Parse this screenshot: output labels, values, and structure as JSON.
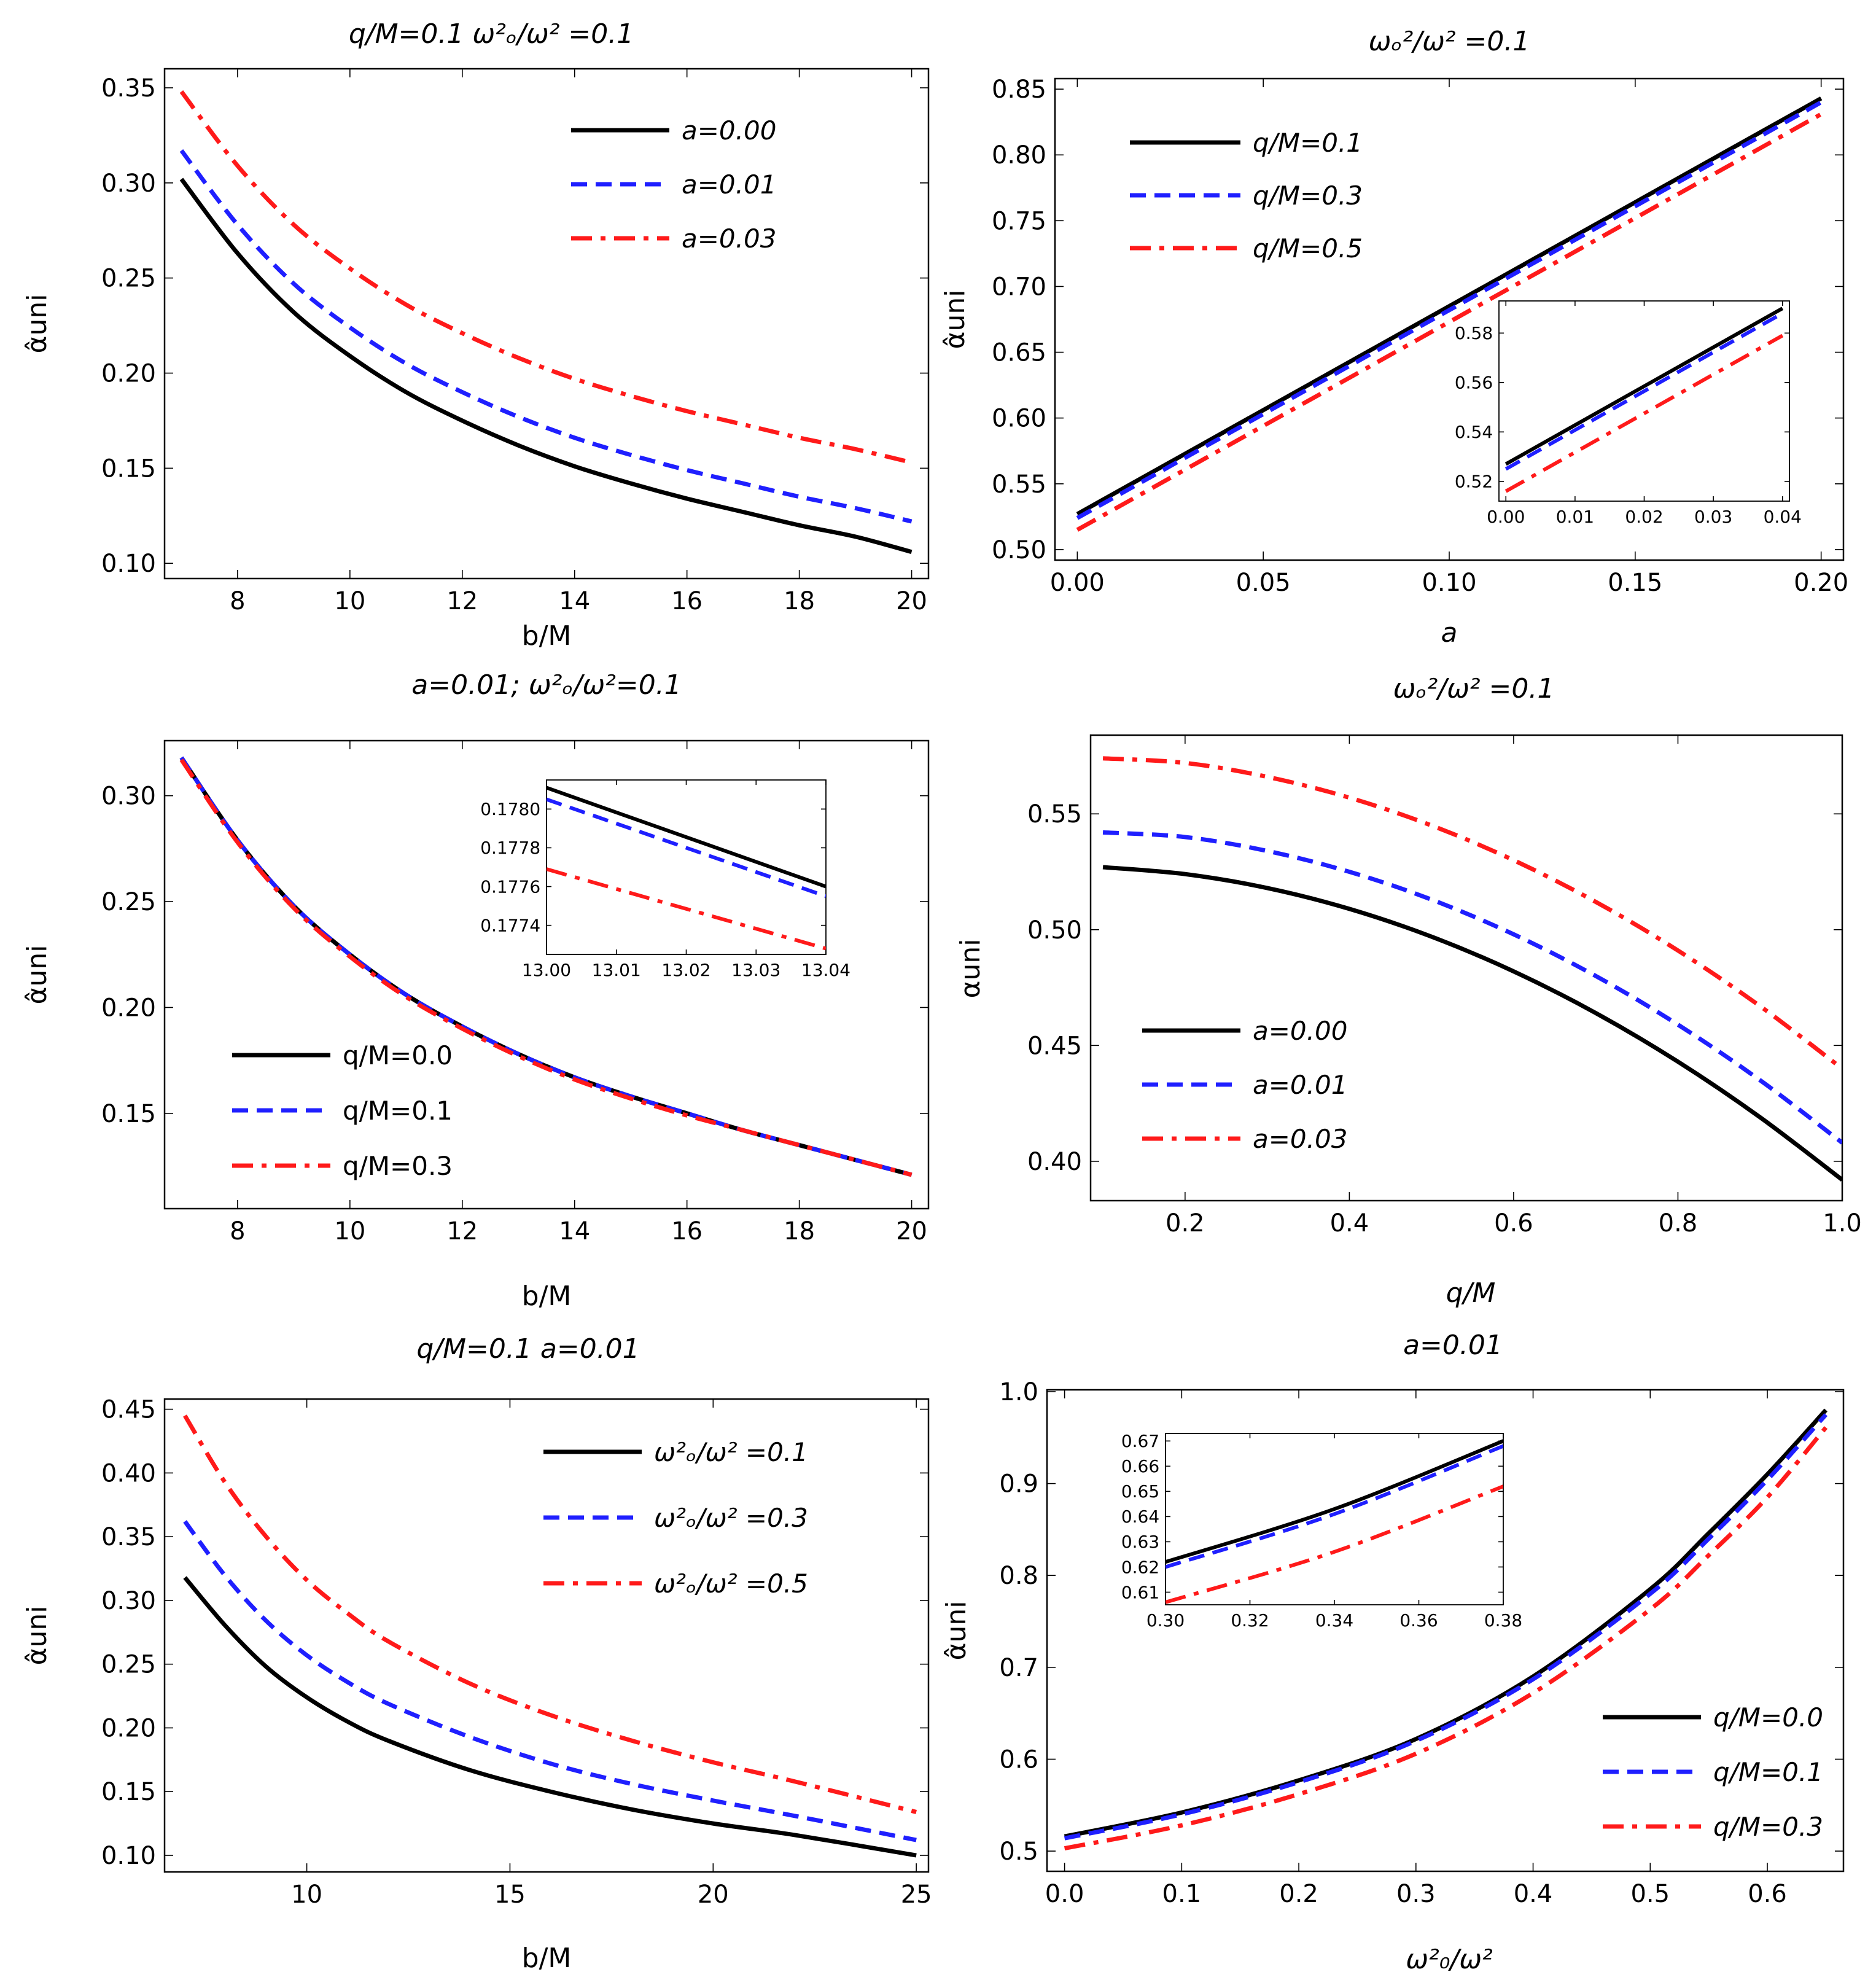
{
  "colors": {
    "black": "#000000",
    "blue": "#1f1fff",
    "red": "#ff1a1a",
    "frame": "#000000",
    "background": "#ffffff"
  },
  "chart_data": [
    {
      "id": "p1",
      "type": "line",
      "title": "q/M=0.1 ω²ₒ/ω² =0.1",
      "xlabel": "b/M",
      "ylabel": "α̂uni",
      "xlim": [
        6.7,
        20.3
      ],
      "ylim": [
        0.092,
        0.36
      ],
      "xticks": [
        8,
        10,
        12,
        14,
        16,
        18,
        20
      ],
      "yticks": [
        0.1,
        0.15,
        0.2,
        0.25,
        0.3,
        0.35
      ],
      "x_tick_labels": [
        "8",
        "10",
        "12",
        "14",
        "16",
        "18",
        "20"
      ],
      "y_tick_labels": [
        "0.10",
        "0.15",
        "0.20",
        "0.25",
        "0.30",
        "0.35"
      ],
      "legend_position": "top-right",
      "series": [
        {
          "name": "a=0.00",
          "style": "solid",
          "color": "#000000",
          "x": [
            7,
            8,
            9,
            10,
            11,
            12,
            13,
            14,
            15,
            16,
            17,
            18,
            19,
            20
          ],
          "y": [
            0.302,
            0.263,
            0.232,
            0.209,
            0.19,
            0.175,
            0.162,
            0.151,
            0.142,
            0.134,
            0.127,
            0.12,
            0.114,
            0.106
          ]
        },
        {
          "name": "a=0.01",
          "style": "dashed",
          "color": "#1f1fff",
          "x": [
            7,
            8,
            9,
            10,
            11,
            12,
            13,
            14,
            15,
            16,
            17,
            18,
            19,
            20
          ],
          "y": [
            0.317,
            0.278,
            0.247,
            0.224,
            0.205,
            0.19,
            0.177,
            0.166,
            0.157,
            0.149,
            0.142,
            0.135,
            0.129,
            0.122
          ]
        },
        {
          "name": "a=0.03",
          "style": "dashdot",
          "color": "#ff1a1a",
          "x": [
            7,
            8,
            9,
            10,
            11,
            12,
            13,
            14,
            15,
            16,
            17,
            18,
            19,
            20
          ],
          "y": [
            0.348,
            0.309,
            0.278,
            0.255,
            0.236,
            0.221,
            0.208,
            0.197,
            0.188,
            0.18,
            0.173,
            0.166,
            0.16,
            0.153
          ]
        }
      ]
    },
    {
      "id": "p2",
      "type": "line",
      "title": "ωₒ²/ω² =0.1",
      "xlabel": "a",
      "ylabel": "α̂uni",
      "xlim": [
        -0.006,
        0.206
      ],
      "ylim": [
        0.492,
        0.858
      ],
      "xticks": [
        0.0,
        0.05,
        0.1,
        0.15,
        0.2
      ],
      "yticks": [
        0.5,
        0.55,
        0.6,
        0.65,
        0.7,
        0.75,
        0.8,
        0.85
      ],
      "x_tick_labels": [
        "0.00",
        "0.05",
        "0.10",
        "0.15",
        "0.20"
      ],
      "y_tick_labels": [
        "0.50",
        "0.55",
        "0.60",
        "0.65",
        "0.70",
        "0.75",
        "0.80",
        "0.85"
      ],
      "legend_position": "top-left",
      "series": [
        {
          "name": "q/M=0.1",
          "style": "solid",
          "color": "#000000",
          "x": [
            0.0,
            0.2
          ],
          "y": [
            0.527,
            0.843
          ]
        },
        {
          "name": "q/M=0.3",
          "style": "dashed",
          "color": "#1f1fff",
          "x": [
            0.0,
            0.2
          ],
          "y": [
            0.524,
            0.84
          ]
        },
        {
          "name": "q/M=0.5",
          "style": "dashdot",
          "color": "#ff1a1a",
          "x": [
            0.0,
            0.2
          ],
          "y": [
            0.515,
            0.831
          ]
        }
      ],
      "inset": {
        "xlim": [
          -0.001,
          0.041
        ],
        "ylim": [
          0.512,
          0.593
        ],
        "xticks": [
          0.0,
          0.01,
          0.02,
          0.03,
          0.04
        ],
        "yticks": [
          0.52,
          0.54,
          0.56,
          0.58
        ],
        "x_tick_labels": [
          "0.00",
          "0.01",
          "0.02",
          "0.03",
          "0.04"
        ],
        "y_tick_labels": [
          "0.52",
          "0.54",
          "0.56",
          "0.58"
        ],
        "series": [
          {
            "name": "q/M=0.1",
            "x": [
              0.0,
              0.04
            ],
            "y": [
              0.527,
              0.59
            ]
          },
          {
            "name": "q/M=0.3",
            "x": [
              0.0,
              0.04
            ],
            "y": [
              0.525,
              0.588
            ]
          },
          {
            "name": "q/M=0.5",
            "x": [
              0.0,
              0.04
            ],
            "y": [
              0.516,
              0.579
            ]
          }
        ]
      }
    },
    {
      "id": "p3",
      "type": "line",
      "title": "a=0.01;   ω²ₒ/ω²=0.1",
      "xlabel": "b/M",
      "ylabel": "α̂uni",
      "xlim": [
        6.7,
        20.3
      ],
      "ylim": [
        0.105,
        0.326
      ],
      "xticks": [
        8,
        10,
        12,
        14,
        16,
        18,
        20
      ],
      "yticks": [
        0.15,
        0.2,
        0.25,
        0.3
      ],
      "x_tick_labels": [
        "8",
        "10",
        "12",
        "14",
        "16",
        "18",
        "20"
      ],
      "y_tick_labels": [
        "0.15",
        "0.20",
        "0.25",
        "0.30"
      ],
      "legend_position": "bottom-left",
      "series": [
        {
          "name": "q/M=0.0",
          "style": "solid",
          "color": "#000000",
          "x": [
            7,
            8,
            9,
            10,
            11,
            12,
            13,
            14,
            15,
            16,
            17,
            18,
            19,
            20
          ],
          "y": [
            0.318,
            0.279,
            0.248,
            0.225,
            0.206,
            0.191,
            0.178,
            0.167,
            0.158,
            0.15,
            0.142,
            0.135,
            0.128,
            0.121
          ]
        },
        {
          "name": "q/M=0.1",
          "style": "dashed",
          "color": "#1f1fff",
          "x": [
            7,
            8,
            9,
            10,
            11,
            12,
            13,
            14,
            15,
            16,
            17,
            18,
            19,
            20
          ],
          "y": [
            0.318,
            0.279,
            0.248,
            0.225,
            0.206,
            0.191,
            0.178,
            0.167,
            0.158,
            0.15,
            0.142,
            0.135,
            0.128,
            0.121
          ]
        },
        {
          "name": "q/M=0.3",
          "style": "dashdot",
          "color": "#ff1a1a",
          "x": [
            7,
            8,
            9,
            10,
            11,
            12,
            13,
            14,
            15,
            16,
            17,
            18,
            19,
            20
          ],
          "y": [
            0.317,
            0.278,
            0.247,
            0.224,
            0.205,
            0.19,
            0.177,
            0.166,
            0.157,
            0.149,
            0.142,
            0.135,
            0.128,
            0.121
          ]
        }
      ],
      "inset": {
        "xlim": [
          13.0,
          13.04
        ],
        "ylim": [
          0.17725,
          0.17815
        ],
        "xticks": [
          13.0,
          13.01,
          13.02,
          13.03,
          13.04
        ],
        "yticks": [
          0.1774,
          0.1776,
          0.1778,
          0.178
        ],
        "x_tick_labels": [
          "13.00",
          "13.01",
          "13.02",
          "13.03",
          "13.04"
        ],
        "y_tick_labels": [
          "0.1774",
          "0.1776",
          "0.1778",
          "0.1780"
        ],
        "series": [
          {
            "name": "q/M=0.0",
            "x": [
              13.0,
              13.04
            ],
            "y": [
              0.17811,
              0.1776
            ]
          },
          {
            "name": "q/M=0.1",
            "x": [
              13.0,
              13.04
            ],
            "y": [
              0.17805,
              0.17755
            ]
          },
          {
            "name": "q/M=0.3",
            "x": [
              13.0,
              13.04
            ],
            "y": [
              0.17769,
              0.17728
            ]
          }
        ]
      }
    },
    {
      "id": "p4",
      "type": "line",
      "title": "ωₒ²/ω² =0.1",
      "xlabel": "q/M",
      "ylabel": "αuni",
      "xlim": [
        0.085,
        1.0
      ],
      "ylim": [
        0.383,
        0.584
      ],
      "xticks": [
        0.2,
        0.4,
        0.6,
        0.8,
        1.0
      ],
      "yticks": [
        0.4,
        0.45,
        0.5,
        0.55
      ],
      "x_tick_labels": [
        "0.2",
        "0.4",
        "0.6",
        "0.8",
        "1.0"
      ],
      "y_tick_labels": [
        "0.40",
        "0.45",
        "0.50",
        "0.55"
      ],
      "legend_position": "bottom-left",
      "series": [
        {
          "name": "a=0.00",
          "style": "solid",
          "color": "#000000",
          "x": [
            0.1,
            0.2,
            0.3,
            0.4,
            0.5,
            0.6,
            0.7,
            0.8,
            0.9,
            1.0
          ],
          "y": [
            0.527,
            0.524,
            0.518,
            0.509,
            0.497,
            0.482,
            0.464,
            0.443,
            0.419,
            0.392
          ]
        },
        {
          "name": "a=0.01",
          "style": "dashed",
          "color": "#1f1fff",
          "x": [
            0.1,
            0.2,
            0.3,
            0.4,
            0.5,
            0.6,
            0.7,
            0.8,
            0.9,
            1.0
          ],
          "y": [
            0.542,
            0.54,
            0.534,
            0.525,
            0.513,
            0.498,
            0.48,
            0.459,
            0.435,
            0.408
          ]
        },
        {
          "name": "a=0.03",
          "style": "dashdot",
          "color": "#ff1a1a",
          "x": [
            0.1,
            0.2,
            0.3,
            0.4,
            0.5,
            0.6,
            0.7,
            0.8,
            0.9,
            1.0
          ],
          "y": [
            0.574,
            0.572,
            0.566,
            0.557,
            0.545,
            0.53,
            0.512,
            0.491,
            0.467,
            0.44
          ]
        }
      ]
    },
    {
      "id": "p5",
      "type": "line",
      "title": "q/M=0.1   a=0.01",
      "xlabel": "b/M",
      "ylabel": "α̂uni",
      "xlim": [
        6.5,
        25.3
      ],
      "ylim": [
        0.087,
        0.458
      ],
      "xticks": [
        10,
        15,
        20,
        25
      ],
      "yticks": [
        0.1,
        0.15,
        0.2,
        0.25,
        0.3,
        0.35,
        0.4,
        0.45
      ],
      "x_tick_labels": [
        "10",
        "15",
        "20",
        "25"
      ],
      "y_tick_labels": [
        "0.10",
        "0.15",
        "0.20",
        "0.25",
        "0.30",
        "0.35",
        "0.40",
        "0.45"
      ],
      "legend_position": "top-right",
      "series": [
        {
          "name": "ω²ₒ/ω² =0.1",
          "style": "solid",
          "color": "#000000",
          "x": [
            7,
            8,
            9,
            10,
            11,
            12,
            14,
            16,
            18,
            20,
            22,
            25
          ],
          "y": [
            0.318,
            0.28,
            0.248,
            0.224,
            0.205,
            0.19,
            0.167,
            0.15,
            0.136,
            0.125,
            0.116,
            0.1
          ]
        },
        {
          "name": "ω²ₒ/ω² =0.3",
          "style": "dashed",
          "color": "#1f1fff",
          "x": [
            7,
            8,
            9,
            10,
            11,
            12,
            14,
            16,
            18,
            20,
            22,
            25
          ],
          "y": [
            0.362,
            0.319,
            0.284,
            0.257,
            0.236,
            0.219,
            0.193,
            0.172,
            0.156,
            0.143,
            0.131,
            0.112
          ]
        },
        {
          "name": "ω²ₒ/ω² =0.5",
          "style": "dashdot",
          "color": "#ff1a1a",
          "x": [
            7,
            8,
            9,
            10,
            11,
            12,
            14,
            16,
            18,
            20,
            22,
            25
          ],
          "y": [
            0.445,
            0.392,
            0.35,
            0.316,
            0.29,
            0.268,
            0.235,
            0.21,
            0.19,
            0.173,
            0.158,
            0.134
          ]
        }
      ]
    },
    {
      "id": "p6",
      "type": "line",
      "title": "a=0.01",
      "xlabel": "ω²₀/ω²",
      "ylabel": "α̂uni",
      "xlim": [
        -0.015,
        0.665
      ],
      "ylim": [
        0.478,
        1.002
      ],
      "xticks": [
        0.0,
        0.1,
        0.2,
        0.3,
        0.4,
        0.5,
        0.6
      ],
      "yticks": [
        0.5,
        0.6,
        0.7,
        0.8,
        0.9,
        1.0
      ],
      "x_tick_labels": [
        "0.0",
        "0.1",
        "0.2",
        "0.3",
        "0.4",
        "0.5",
        "0.6"
      ],
      "y_tick_labels": [
        "0.5",
        "0.6",
        "0.7",
        "0.8",
        "0.9",
        "1.0"
      ],
      "legend_position": "bottom-right",
      "series": [
        {
          "name": "q/M=0.0",
          "style": "solid",
          "color": "#000000",
          "x": [
            0.0,
            0.1,
            0.2,
            0.3,
            0.4,
            0.5,
            0.55,
            0.6,
            0.65
          ],
          "y": [
            0.516,
            0.542,
            0.577,
            0.622,
            0.69,
            0.785,
            0.846,
            0.91,
            0.98
          ]
        },
        {
          "name": "q/M=0.1",
          "style": "dashed",
          "color": "#1f1fff",
          "x": [
            0.0,
            0.1,
            0.2,
            0.3,
            0.4,
            0.5,
            0.55,
            0.6,
            0.65
          ],
          "y": [
            0.514,
            0.54,
            0.575,
            0.62,
            0.687,
            0.78,
            0.84,
            0.904,
            0.975
          ]
        },
        {
          "name": "q/M=0.3",
          "style": "dashdot",
          "color": "#ff1a1a",
          "x": [
            0.0,
            0.1,
            0.2,
            0.3,
            0.4,
            0.5,
            0.55,
            0.6,
            0.65
          ],
          "y": [
            0.503,
            0.528,
            0.562,
            0.606,
            0.672,
            0.763,
            0.822,
            0.885,
            0.961
          ]
        }
      ],
      "inset": {
        "xlim": [
          0.3,
          0.38
        ],
        "ylim": [
          0.605,
          0.673
        ],
        "xticks": [
          0.3,
          0.32,
          0.34,
          0.36,
          0.38
        ],
        "yticks": [
          0.61,
          0.62,
          0.63,
          0.64,
          0.65,
          0.66,
          0.67
        ],
        "x_tick_labels": [
          "0.30",
          "0.32",
          "0.34",
          "0.36",
          "0.38"
        ],
        "y_tick_labels": [
          "0.61",
          "0.62",
          "0.63",
          "0.64",
          "0.65",
          "0.66",
          "0.67"
        ],
        "series": [
          {
            "name": "q/M=0.0",
            "x": [
              0.3,
              0.34,
              0.38
            ],
            "y": [
              0.622,
              0.643,
              0.67
            ]
          },
          {
            "name": "q/M=0.1",
            "x": [
              0.3,
              0.34,
              0.38
            ],
            "y": [
              0.62,
              0.641,
              0.668
            ]
          },
          {
            "name": "q/M=0.3",
            "x": [
              0.3,
              0.34,
              0.38
            ],
            "y": [
              0.606,
              0.626,
              0.652
            ]
          }
        ]
      }
    }
  ]
}
